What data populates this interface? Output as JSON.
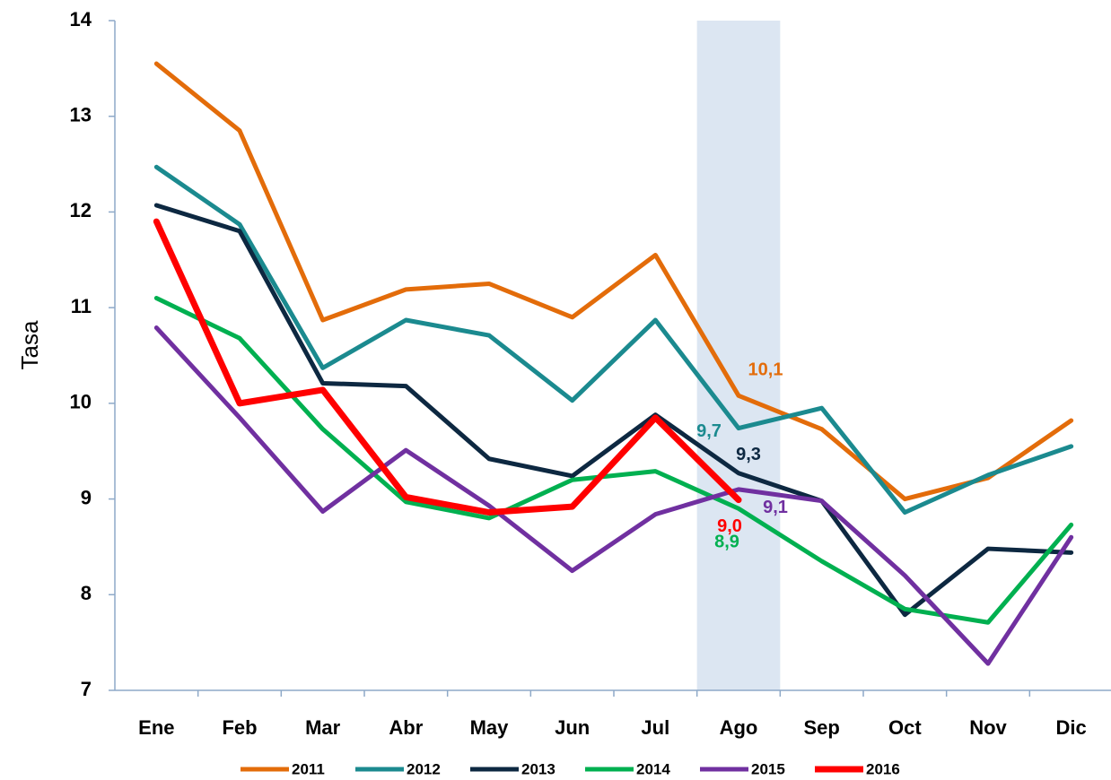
{
  "chart_data": {
    "type": "line",
    "y_label": "Tasa",
    "categories": [
      "Ene",
      "Feb",
      "Mar",
      "Abr",
      "May",
      "Jun",
      "Jul",
      "Ago",
      "Sep",
      "Oct",
      "Nov",
      "Dic"
    ],
    "ylim": [
      7,
      14
    ],
    "yticks": [
      7,
      8,
      9,
      10,
      11,
      12,
      13,
      14
    ],
    "highlight_band": {
      "category_index": 7,
      "color": "#dce6f2"
    },
    "legend": "bottom",
    "series": [
      {
        "name": "2011",
        "color": "#e36c0a",
        "values": [
          13.55,
          12.85,
          10.87,
          11.19,
          11.25,
          10.9,
          11.55,
          10.08,
          9.73,
          9.0,
          9.22,
          9.82
        ],
        "value_labels": [
          null,
          null,
          null,
          null,
          null,
          null,
          null,
          "10,1",
          null,
          null,
          null,
          null
        ]
      },
      {
        "name": "2012",
        "color": "#1b8a8f",
        "values": [
          12.47,
          11.87,
          10.37,
          10.87,
          10.71,
          10.03,
          10.87,
          9.74,
          9.95,
          8.86,
          9.25,
          9.55
        ],
        "value_labels": [
          null,
          null,
          null,
          null,
          null,
          null,
          null,
          "9,7",
          null,
          null,
          null,
          null
        ]
      },
      {
        "name": "2013",
        "color": "#0d2841",
        "values": [
          12.07,
          11.8,
          10.21,
          10.18,
          9.42,
          9.24,
          9.88,
          9.27,
          8.98,
          7.79,
          8.48,
          8.44
        ],
        "value_labels": [
          null,
          null,
          null,
          null,
          null,
          null,
          null,
          "9,3",
          null,
          null,
          null,
          null
        ]
      },
      {
        "name": "2014",
        "color": "#00b050",
        "values": [
          11.1,
          10.68,
          9.73,
          8.97,
          8.8,
          9.2,
          9.29,
          8.9,
          8.35,
          7.85,
          7.71,
          8.73
        ],
        "value_labels": [
          null,
          null,
          null,
          null,
          null,
          null,
          null,
          "8,9",
          null,
          null,
          null,
          null
        ]
      },
      {
        "name": "2015",
        "color": "#7030a0",
        "values": [
          10.79,
          9.85,
          8.87,
          9.51,
          8.93,
          8.25,
          8.84,
          9.1,
          8.98,
          8.2,
          7.28,
          8.6
        ],
        "value_labels": [
          null,
          null,
          null,
          null,
          null,
          null,
          null,
          "9,1",
          null,
          null,
          null,
          null
        ]
      },
      {
        "name": "2016",
        "color": "#ff0000",
        "values": [
          11.9,
          10.0,
          10.14,
          9.02,
          8.86,
          8.92,
          9.85,
          8.99,
          null,
          null,
          null,
          null
        ],
        "value_labels": [
          null,
          null,
          null,
          null,
          null,
          null,
          null,
          "9,0",
          null,
          null,
          null,
          null
        ]
      }
    ]
  }
}
